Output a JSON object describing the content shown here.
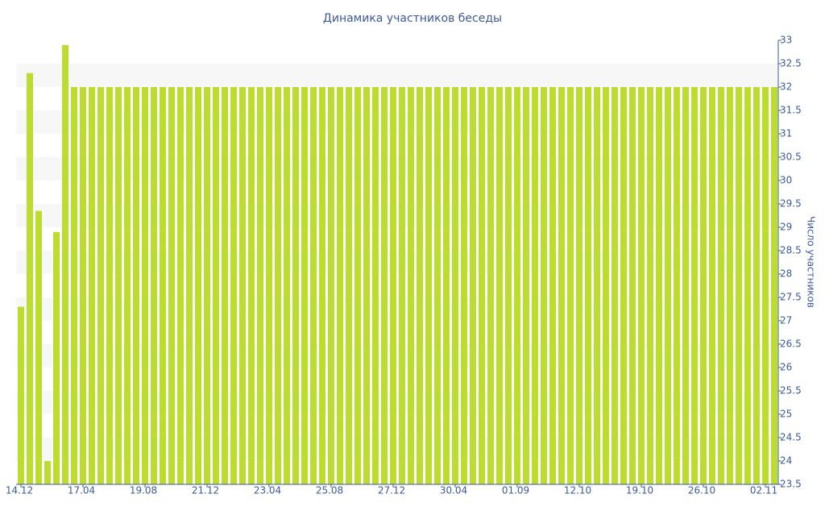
{
  "chart_data": {
    "type": "bar",
    "title": "Динамика участников беседы",
    "y_label": "Число участников",
    "categories": [
      "14.12",
      null,
      null,
      null,
      null,
      null,
      null,
      "17.04",
      null,
      null,
      null,
      null,
      null,
      null,
      "19.08",
      null,
      null,
      null,
      null,
      null,
      null,
      "21.12",
      null,
      null,
      null,
      null,
      null,
      null,
      "23.04",
      null,
      null,
      null,
      null,
      null,
      null,
      "25.08",
      null,
      null,
      null,
      null,
      null,
      null,
      "27.12",
      null,
      null,
      null,
      null,
      null,
      null,
      "30.04",
      null,
      null,
      null,
      null,
      null,
      null,
      "01.09",
      null,
      null,
      null,
      null,
      null,
      null,
      "12.10",
      null,
      null,
      null,
      null,
      null,
      null,
      "19.10",
      null,
      null,
      null,
      null,
      null,
      null,
      "26.10",
      null,
      null,
      null,
      null,
      null,
      null,
      "02.11",
      null
    ],
    "values": [
      27.3,
      32.3,
      29.35,
      24.0,
      28.9,
      32.9,
      32,
      32,
      32,
      32,
      32,
      32,
      32,
      32,
      32,
      32,
      32,
      32,
      32,
      32,
      32,
      32,
      32,
      32,
      32,
      32,
      32,
      32,
      32,
      32,
      32,
      32,
      32,
      32,
      32,
      32,
      32,
      32,
      32,
      32,
      32,
      32,
      32,
      32,
      32,
      32,
      32,
      32,
      32,
      32,
      32,
      32,
      32,
      32,
      32,
      32,
      32,
      32,
      32,
      32,
      32,
      32,
      32,
      32,
      32,
      32,
      32,
      32,
      32,
      32,
      32,
      32,
      32,
      32,
      32,
      32,
      32,
      32,
      32,
      32,
      32,
      32,
      32,
      32,
      32,
      32
    ],
    "color": "#bcdc2f",
    "ylim": [
      23.5,
      33
    ],
    "yticks": [
      23.5,
      24,
      24.5,
      25,
      25.5,
      26,
      26.5,
      27,
      27.5,
      28,
      28.5,
      29,
      29.5,
      30,
      30.5,
      31,
      31.5,
      32,
      32.5,
      33
    ],
    "grid": true
  }
}
